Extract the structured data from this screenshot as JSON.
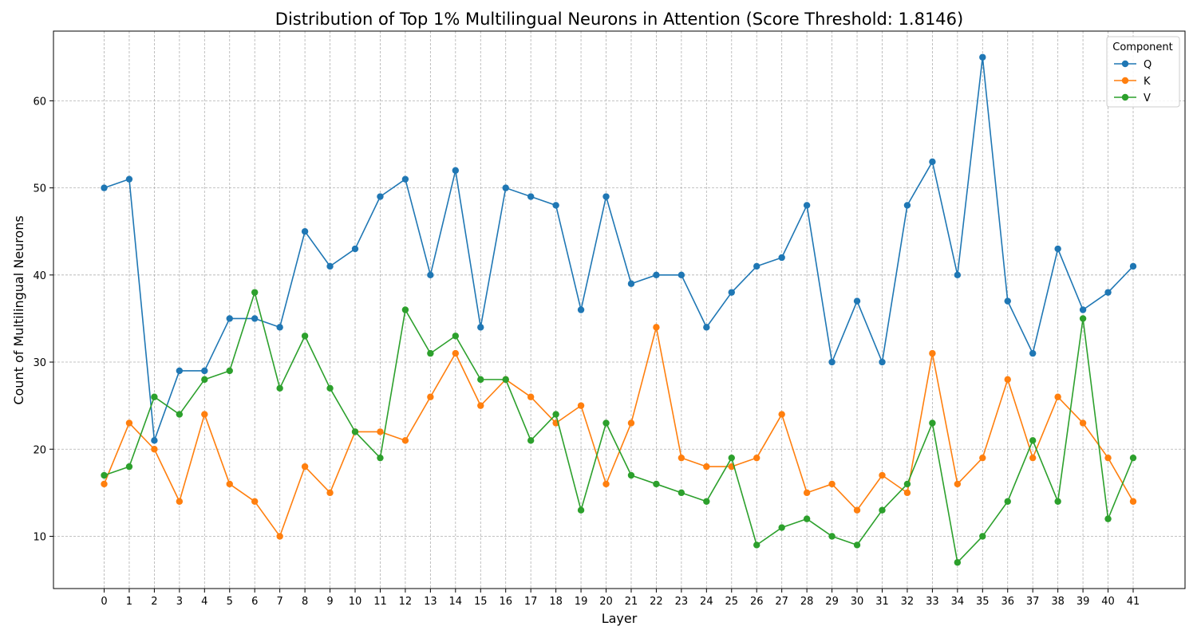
{
  "chart_data": {
    "type": "line",
    "title": "Distribution of Top 1% Multilingual Neurons in Attention (Score Threshold: 1.8146)",
    "xlabel": "Layer",
    "ylabel": "Count of Multilingual Neurons",
    "x": [
      "0",
      "1",
      "2",
      "3",
      "4",
      "5",
      "6",
      "7",
      "8",
      "9",
      "10",
      "11",
      "12",
      "13",
      "14",
      "15",
      "16",
      "17",
      "18",
      "19",
      "20",
      "21",
      "22",
      "23",
      "24",
      "25",
      "26",
      "27",
      "28",
      "29",
      "30",
      "31",
      "32",
      "33",
      "34",
      "35",
      "36",
      "37",
      "38",
      "39",
      "40",
      "41"
    ],
    "ylim": [
      4,
      68
    ],
    "yticks": [
      "10",
      "20",
      "30",
      "40",
      "50",
      "60"
    ],
    "grid": true,
    "legend": {
      "title": "Component",
      "placement": "top-right"
    },
    "series": [
      {
        "name": "Q",
        "color": "#1f77b4",
        "values": [
          50,
          51,
          21,
          29,
          29,
          35,
          35,
          34,
          45,
          41,
          43,
          49,
          51,
          40,
          52,
          34,
          50,
          49,
          48,
          36,
          49,
          39,
          40,
          40,
          34,
          38,
          41,
          42,
          48,
          30,
          37,
          30,
          48,
          53,
          40,
          65,
          37,
          31,
          43,
          36,
          38,
          41
        ]
      },
      {
        "name": "K",
        "color": "#ff7f0e",
        "values": [
          16,
          23,
          20,
          14,
          24,
          16,
          14,
          10,
          18,
          15,
          22,
          22,
          21,
          26,
          31,
          25,
          28,
          26,
          23,
          25,
          16,
          23,
          34,
          19,
          18,
          18,
          19,
          24,
          15,
          16,
          13,
          17,
          15,
          31,
          16,
          19,
          28,
          19,
          26,
          23,
          19,
          14
        ]
      },
      {
        "name": "V",
        "color": "#2ca02c",
        "values": [
          17,
          18,
          26,
          24,
          28,
          29,
          38,
          27,
          33,
          27,
          22,
          19,
          36,
          31,
          33,
          28,
          28,
          21,
          24,
          13,
          23,
          17,
          16,
          15,
          14,
          19,
          9,
          11,
          12,
          10,
          9,
          13,
          16,
          23,
          7,
          10,
          14,
          21,
          14,
          35,
          12,
          19
        ]
      }
    ]
  }
}
